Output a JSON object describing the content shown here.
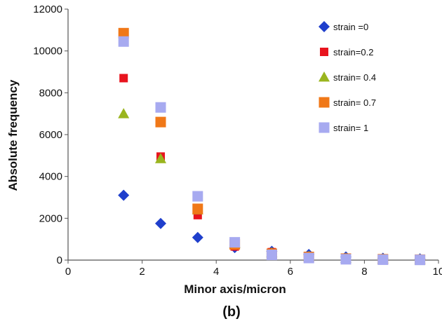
{
  "chart_data": {
    "type": "scatter",
    "title": "",
    "caption": "(b)",
    "xlabel": "Minor axis/micron",
    "ylabel": "Absolute frequency",
    "xlim": [
      0,
      10
    ],
    "ylim": [
      0,
      12000
    ],
    "xticks": [
      0,
      2,
      4,
      6,
      8,
      10
    ],
    "yticks": [
      0,
      2000,
      4000,
      6000,
      8000,
      10000,
      12000
    ],
    "grid": false,
    "legend_position": "top-right",
    "series": [
      {
        "name": "strain =0",
        "marker": "diamond",
        "color": "#1f3fcc",
        "x": [
          1.5,
          2.5,
          3.5,
          4.5,
          5.5,
          6.5,
          7.5,
          8.5,
          9.5
        ],
        "y": [
          3100,
          1750,
          1080,
          600,
          420,
          270,
          150,
          90,
          60
        ]
      },
      {
        "name": "strain=0.2",
        "marker": "square-small",
        "color": "#e8141e",
        "x": [
          1.5,
          2.5,
          3.5,
          4.5,
          5.5,
          6.5,
          7.5,
          8.5,
          9.5
        ],
        "y": [
          8700,
          4950,
          2150,
          650,
          380,
          200,
          100,
          60,
          40
        ]
      },
      {
        "name": "strain= 0.4",
        "marker": "triangle",
        "color": "#9ab51e",
        "x": [
          1.5,
          2.5,
          3.5,
          4.5,
          5.5,
          6.5,
          7.5,
          8.5,
          9.5
        ],
        "y": [
          7000,
          4850,
          2400,
          800,
          350,
          180,
          90,
          50,
          30
        ]
      },
      {
        "name": "strain= 0.7",
        "marker": "square",
        "color": "#f07818",
        "x": [
          1.5,
          2.5,
          3.5,
          4.5,
          5.5,
          6.5,
          7.5,
          8.5,
          9.5
        ],
        "y": [
          10850,
          6600,
          2450,
          750,
          300,
          150,
          70,
          40,
          20
        ]
      },
      {
        "name": "strain= 1",
        "marker": "square",
        "color": "#a7aaf0",
        "x": [
          1.5,
          2.5,
          3.5,
          4.5,
          5.5,
          6.5,
          7.5,
          8.5,
          9.5
        ],
        "y": [
          10450,
          7300,
          3050,
          850,
          250,
          100,
          40,
          20,
          10
        ]
      }
    ]
  }
}
